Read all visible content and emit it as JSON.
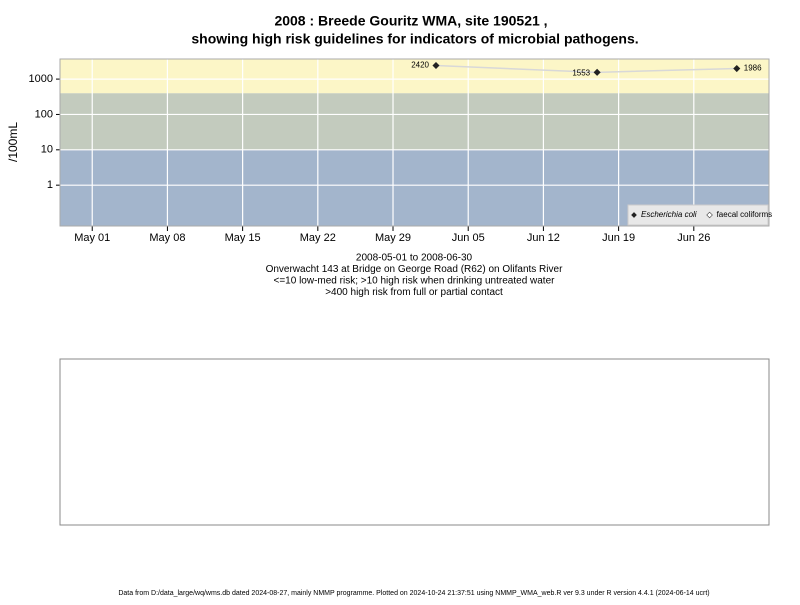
{
  "chart_data": {
    "type": "scatter",
    "title": "2008 : Breede Gouritz WMA, site 190521 ,",
    "subtitle": "showing high risk guidelines for indicators of microbial pathogens.",
    "y_label": "/100mL",
    "notes": [
      "2008-05-01 to 2008-06-30",
      "Onverwacht 143 at Bridge on George Road (R62) on Olifants River",
      "<=10 low-med risk; >10 high risk when drinking untreated water",
      ">400 high risk from full or partial contact"
    ],
    "footer": "Data from D:/data_large/wq/wms.db dated 2024-08-27, mainly NMMP programme. Plotted on 2024-10-24 21:37:51 using NMMP_WMA_web.R ver 9.3 under R version 4.4.1 (2024-06-14 ucrt)",
    "x": [
      "2008-06-02",
      "2008-06-17",
      "2008-06-30"
    ],
    "series": [
      {
        "name": "Escherichia coli",
        "color": "#222222",
        "values": [
          2420,
          1553,
          1986
        ]
      },
      {
        "name": "faecal coliforms",
        "color": "#ffffff",
        "values": [
          null,
          null,
          null
        ]
      }
    ],
    "xlim": [
      "2008-04-28",
      "2008-07-03"
    ],
    "xticks": [
      {
        "value": "2008-05-01",
        "label": "May 01"
      },
      {
        "value": "2008-05-08",
        "label": "May 08"
      },
      {
        "value": "2008-05-15",
        "label": "May 15"
      },
      {
        "value": "2008-05-22",
        "label": "May 22"
      },
      {
        "value": "2008-05-29",
        "label": "May 29"
      },
      {
        "value": "2008-06-05",
        "label": "Jun 05"
      },
      {
        "value": "2008-06-12",
        "label": "Jun 12"
      },
      {
        "value": "2008-06-19",
        "label": "Jun 19"
      },
      {
        "value": "2008-06-26",
        "label": "Jun 26"
      }
    ],
    "ylim": [
      0.07,
      3700
    ],
    "yticks": [
      1,
      10,
      100,
      1000
    ],
    "log_y": true,
    "grid": true,
    "thresholds": [
      10,
      400
    ],
    "band_colors": [
      "#a3b5cc",
      "#c3cbbe",
      "#fcf6c7"
    ],
    "line_color": "#d8d8d8",
    "legend": "bottom-right"
  }
}
